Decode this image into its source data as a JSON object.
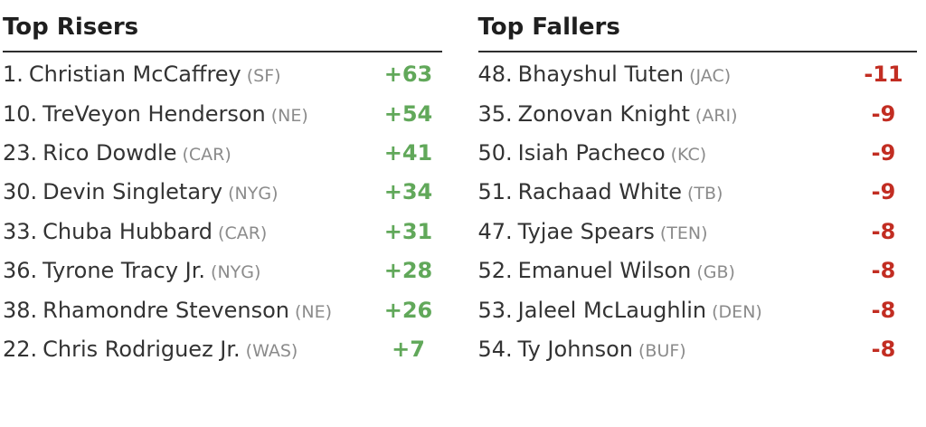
{
  "colors": {
    "positive": "#61a85a",
    "negative": "#c22d22",
    "text": "#333333",
    "team": "#8b8b8b",
    "heading": "#1f1f1f",
    "rule": "#2e2e2e"
  },
  "risers": {
    "title": "Top Risers",
    "items": [
      {
        "rank": "1.",
        "name": "Christian McCaffrey",
        "team": "(SF)",
        "change": "+63"
      },
      {
        "rank": "10.",
        "name": "TreVeyon Henderson",
        "team": "(NE)",
        "change": "+54"
      },
      {
        "rank": "23.",
        "name": "Rico Dowdle",
        "team": "(CAR)",
        "change": "+41"
      },
      {
        "rank": "30.",
        "name": "Devin Singletary",
        "team": "(NYG)",
        "change": "+34"
      },
      {
        "rank": "33.",
        "name": "Chuba Hubbard",
        "team": "(CAR)",
        "change": "+31"
      },
      {
        "rank": "36.",
        "name": "Tyrone Tracy Jr.",
        "team": "(NYG)",
        "change": "+28"
      },
      {
        "rank": "38.",
        "name": "Rhamondre Stevenson",
        "team": "(NE)",
        "change": "+26"
      },
      {
        "rank": "22.",
        "name": "Chris Rodriguez Jr.",
        "team": "(WAS)",
        "change": "+7"
      }
    ]
  },
  "fallers": {
    "title": "Top Fallers",
    "items": [
      {
        "rank": "48.",
        "name": "Bhayshul Tuten",
        "team": "(JAC)",
        "change": "-11"
      },
      {
        "rank": "35.",
        "name": "Zonovan Knight",
        "team": "(ARI)",
        "change": "-9"
      },
      {
        "rank": "50.",
        "name": "Isiah Pacheco",
        "team": "(KC)",
        "change": "-9"
      },
      {
        "rank": "51.",
        "name": "Rachaad White",
        "team": "(TB)",
        "change": "-9"
      },
      {
        "rank": "47.",
        "name": "Tyjae Spears",
        "team": "(TEN)",
        "change": "-8"
      },
      {
        "rank": "52.",
        "name": "Emanuel Wilson",
        "team": "(GB)",
        "change": "-8"
      },
      {
        "rank": "53.",
        "name": "Jaleel McLaughlin",
        "team": "(DEN)",
        "change": "-8"
      },
      {
        "rank": "54.",
        "name": "Ty Johnson",
        "team": "(BUF)",
        "change": "-8"
      }
    ]
  }
}
